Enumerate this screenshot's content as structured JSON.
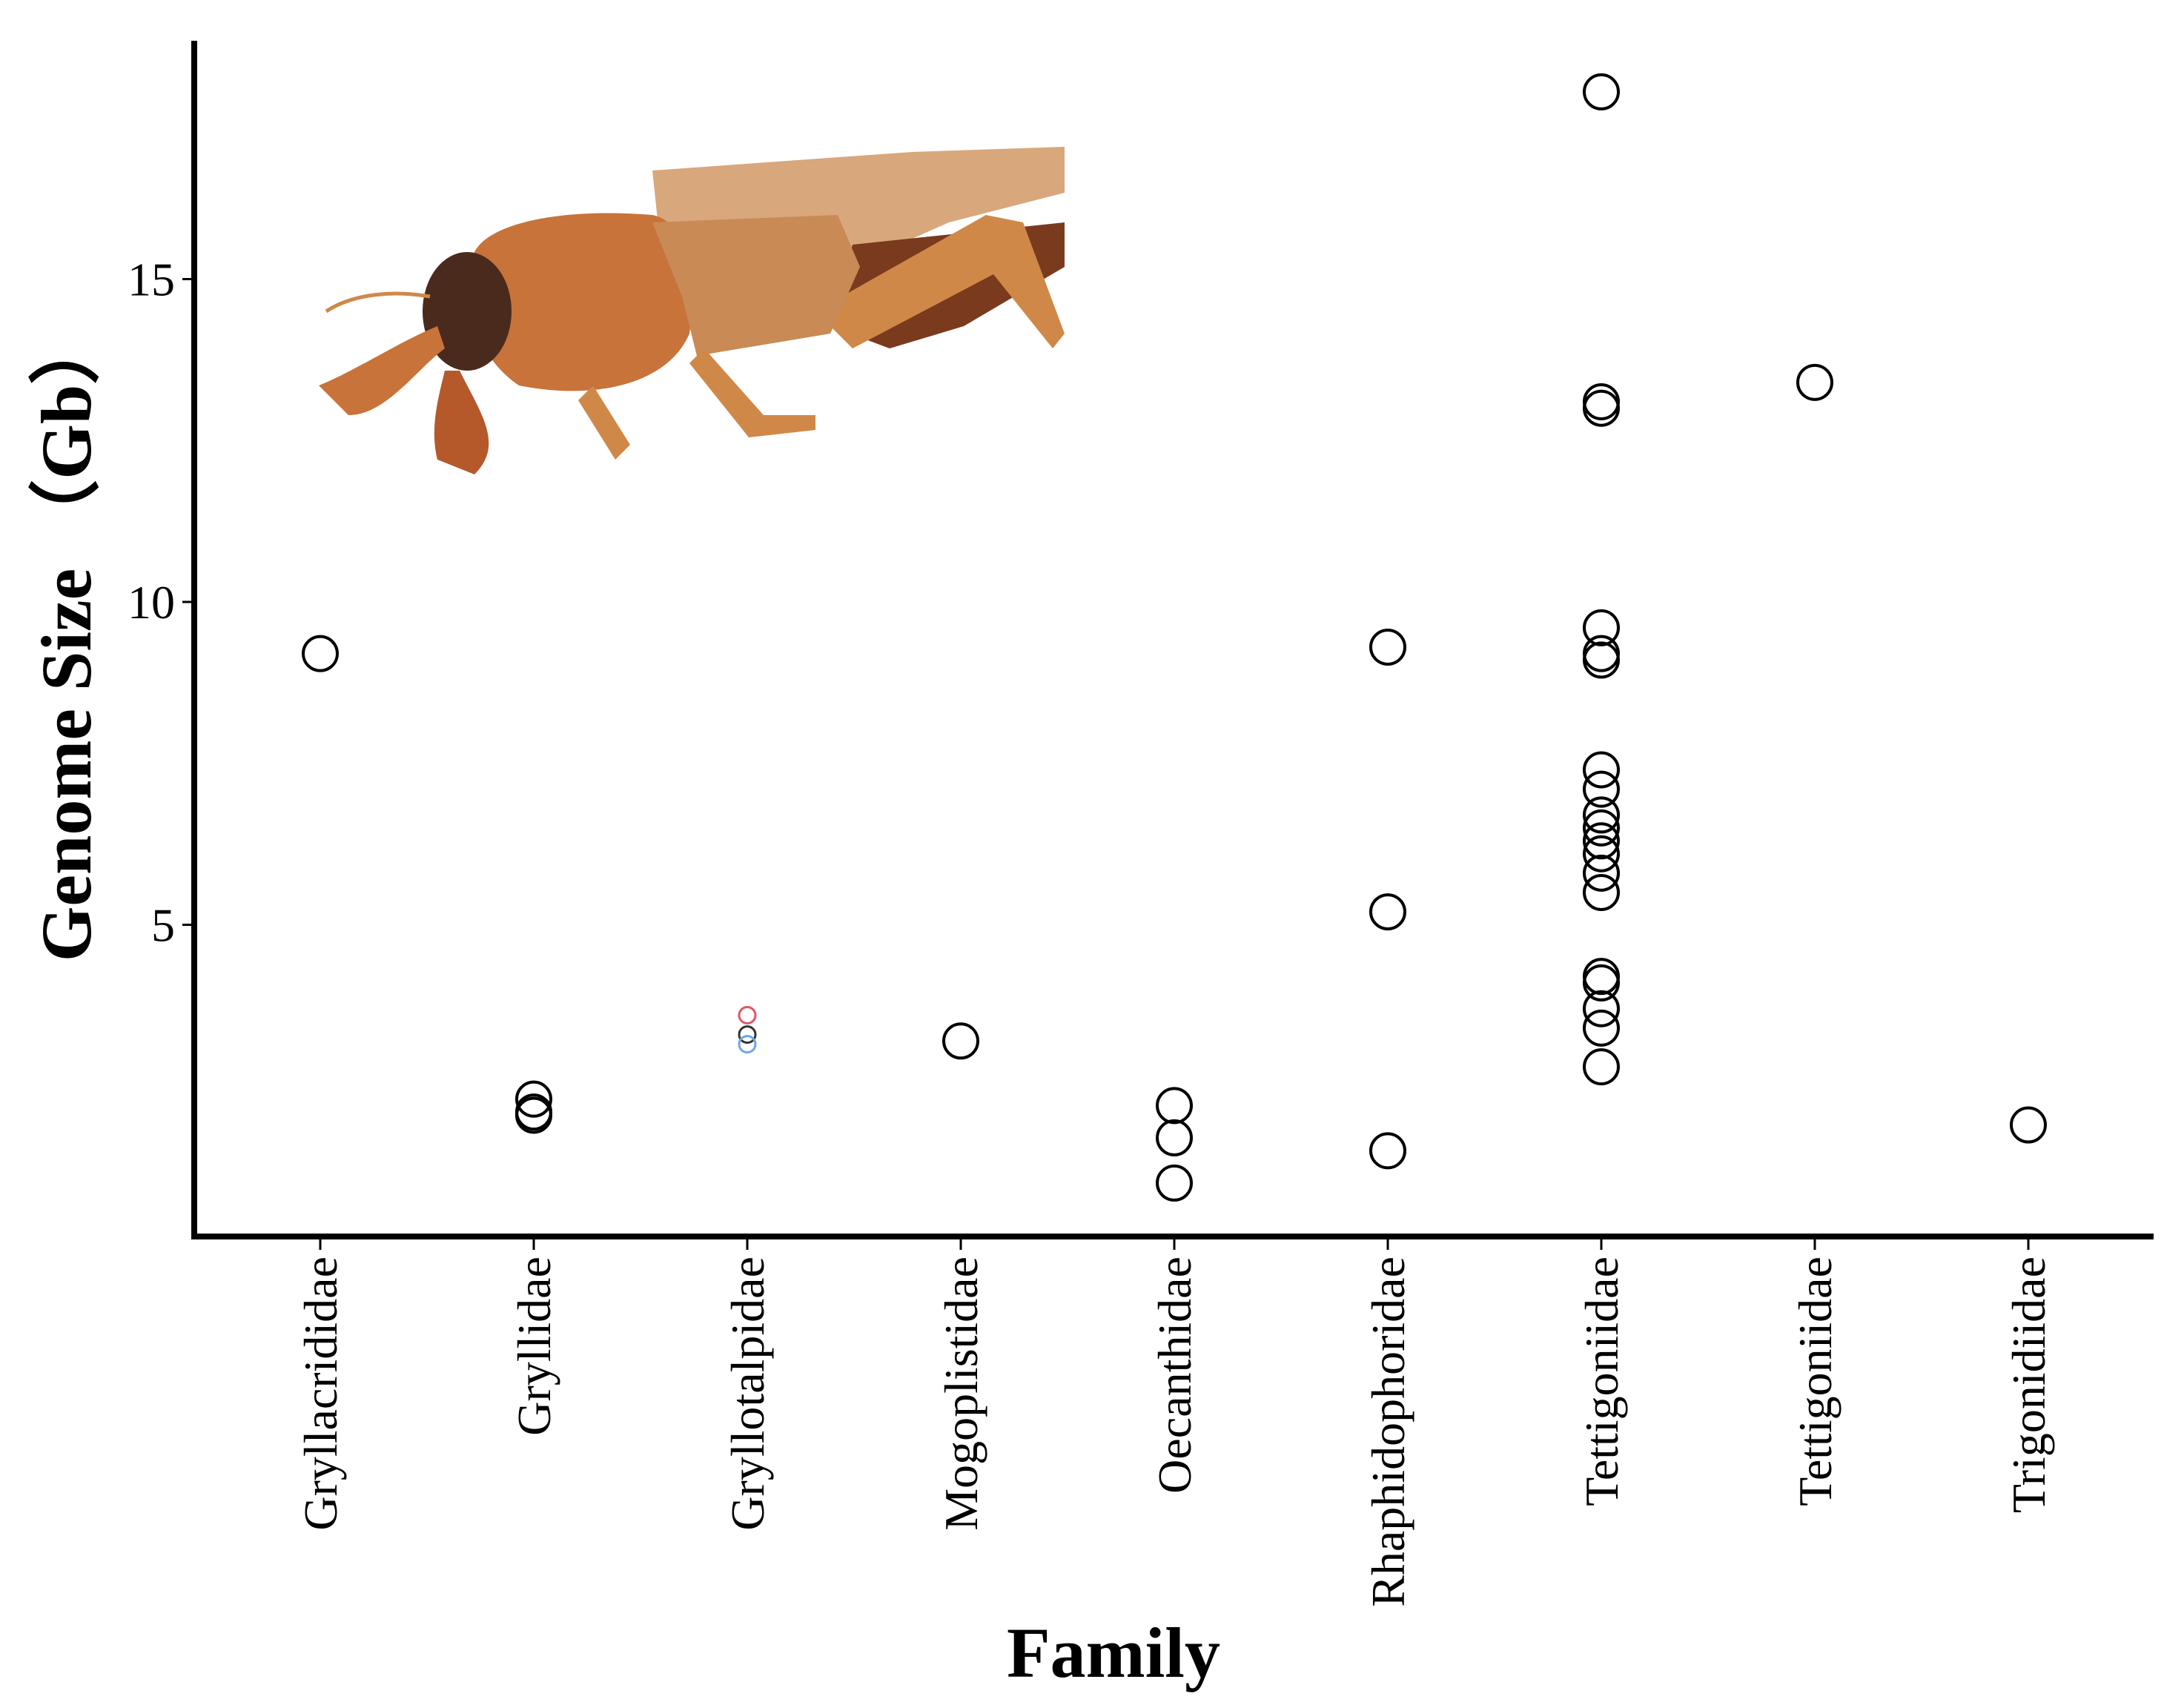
{
  "chart_data": {
    "type": "scatter",
    "xlabel": "Family",
    "ylabel": "Genome Size （Gb）",
    "categories": [
      "Gryllacrididae",
      "Gryllidae",
      "Gryllotalpidae",
      "Mogoplistidae",
      "Oecanthidae",
      "Rhaphidophoridae",
      "Tettigoniidae",
      "Tettigoniidae",
      "Trigonidiidae"
    ],
    "yticks": [
      5,
      10,
      15
    ],
    "ylim": [
      0.6,
      19.0
    ],
    "grid": false,
    "legend": "none",
    "series": [
      {
        "marker": "open-circle",
        "color": "#000000",
        "points": [
          {
            "category": 0,
            "y": 9.2
          },
          {
            "category": 1,
            "y": 2.3
          },
          {
            "category": 1,
            "y": 2.1
          },
          {
            "category": 1,
            "y": 2.05
          },
          {
            "category": 3,
            "y": 3.2
          },
          {
            "category": 4,
            "y": 2.2
          },
          {
            "category": 4,
            "y": 1.7
          },
          {
            "category": 4,
            "y": 1.0
          },
          {
            "category": 5,
            "y": 9.3
          },
          {
            "category": 5,
            "y": 5.2
          },
          {
            "category": 5,
            "y": 1.5
          },
          {
            "category": 6,
            "y": 17.9
          },
          {
            "category": 6,
            "y": 13.1
          },
          {
            "category": 6,
            "y": 13.0
          },
          {
            "category": 6,
            "y": 9.6
          },
          {
            "category": 6,
            "y": 9.2
          },
          {
            "category": 6,
            "y": 9.1
          },
          {
            "category": 6,
            "y": 7.4
          },
          {
            "category": 6,
            "y": 7.1
          },
          {
            "category": 6,
            "y": 6.7
          },
          {
            "category": 6,
            "y": 6.5
          },
          {
            "category": 6,
            "y": 6.3
          },
          {
            "category": 6,
            "y": 6.1
          },
          {
            "category": 6,
            "y": 5.8
          },
          {
            "category": 6,
            "y": 5.5
          },
          {
            "category": 6,
            "y": 4.2
          },
          {
            "category": 6,
            "y": 4.1
          },
          {
            "category": 6,
            "y": 3.7
          },
          {
            "category": 6,
            "y": 3.4
          },
          {
            "category": 6,
            "y": 2.8
          },
          {
            "category": 7,
            "y": 13.4
          },
          {
            "category": 8,
            "y": 1.9
          }
        ]
      },
      {
        "marker": "small-open-circle",
        "points": [
          {
            "category": 2,
            "y": 3.6,
            "color": "#e0566a"
          },
          {
            "category": 2,
            "y": 3.3,
            "color": "#333333"
          },
          {
            "category": 2,
            "y": 3.15,
            "color": "#6aa8e8"
          }
        ]
      }
    ]
  },
  "inset_photo": {
    "subject": "mole-cricket-specimen",
    "colors": {
      "body": "#c8733a",
      "dark": "#7a3a1e",
      "head": "#4a2a1c",
      "wing": "#d9a77c",
      "leg": "#d08848"
    }
  }
}
